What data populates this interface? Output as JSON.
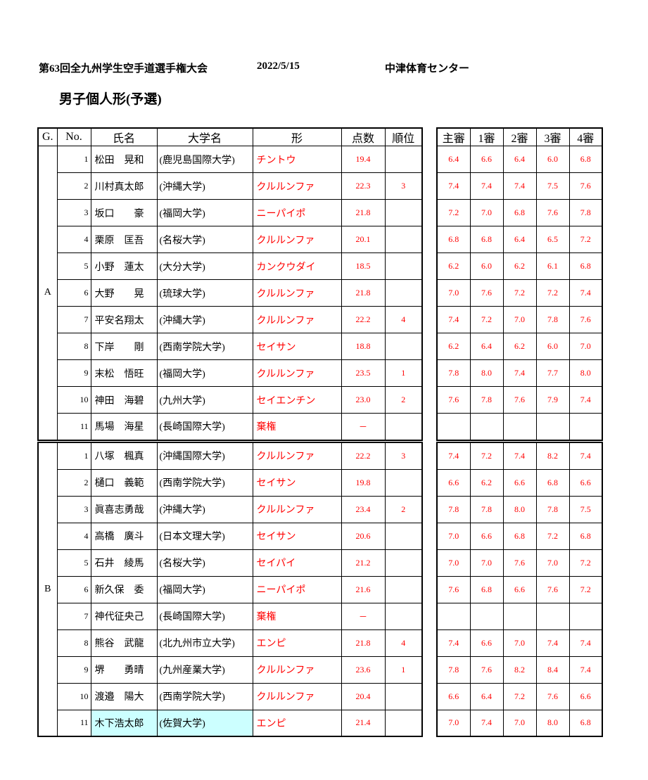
{
  "page": {
    "title": "第63回全九州学生空手道選手権大会",
    "date": "2022/5/15",
    "venue": "中津体育センター",
    "subtitle": "男子個人形(予選)"
  },
  "colors": {
    "score_red": "#ff0000",
    "highlight_cyan": "#ccffff",
    "border_black": "#000000"
  },
  "table": {
    "headers": {
      "group": "G.",
      "no": "No.",
      "name": "氏名",
      "university": "大学名",
      "kata": "形",
      "score": "点数",
      "rank": "順位"
    },
    "judge_headers": [
      "主審",
      "1審",
      "2審",
      "3審",
      "4審"
    ]
  },
  "groups": [
    {
      "label": "A",
      "rows": [
        {
          "no": "1",
          "name": "松田　晃和",
          "university": "(鹿児島国際大学)",
          "kata": "チントウ",
          "score": "19.4",
          "rank": "",
          "judges": [
            "6.4",
            "6.6",
            "6.4",
            "6.0",
            "6.8"
          ],
          "highlight": false
        },
        {
          "no": "2",
          "name": "川村真太郎",
          "university": "(沖縄大学)",
          "kata": "クルルンファ",
          "score": "22.3",
          "rank": "3",
          "judges": [
            "7.4",
            "7.4",
            "7.4",
            "7.5",
            "7.6"
          ],
          "highlight": false
        },
        {
          "no": "3",
          "name": "坂口　　豪",
          "university": "(福岡大学)",
          "kata": "ニーパイポ",
          "score": "21.8",
          "rank": "",
          "judges": [
            "7.2",
            "7.0",
            "6.8",
            "7.6",
            "7.8"
          ],
          "highlight": false
        },
        {
          "no": "4",
          "name": "栗原　匡吾",
          "university": "(名桜大学)",
          "kata": "クルルンファ",
          "score": "20.1",
          "rank": "",
          "judges": [
            "6.8",
            "6.8",
            "6.4",
            "6.5",
            "7.2"
          ],
          "highlight": false
        },
        {
          "no": "5",
          "name": "小野　蓮太",
          "university": "(大分大学)",
          "kata": "カンクウダイ",
          "score": "18.5",
          "rank": "",
          "judges": [
            "6.2",
            "6.0",
            "6.2",
            "6.1",
            "6.8"
          ],
          "highlight": false
        },
        {
          "no": "6",
          "name": "大野　　晃",
          "university": "(琉球大学)",
          "kata": "クルルンファ",
          "score": "21.8",
          "rank": "",
          "judges": [
            "7.0",
            "7.6",
            "7.2",
            "7.2",
            "7.4"
          ],
          "highlight": false
        },
        {
          "no": "7",
          "name": "平安名翔太",
          "university": "(沖縄大学)",
          "kata": "クルルンファ",
          "score": "22.2",
          "rank": "4",
          "judges": [
            "7.4",
            "7.2",
            "7.0",
            "7.8",
            "7.6"
          ],
          "highlight": false
        },
        {
          "no": "8",
          "name": "下岸　　剛",
          "university": "(西南学院大学)",
          "kata": "セイサン",
          "score": "18.8",
          "rank": "",
          "judges": [
            "6.2",
            "6.4",
            "6.2",
            "6.0",
            "7.0"
          ],
          "highlight": false
        },
        {
          "no": "9",
          "name": "末松　悟旺",
          "university": "(福岡大学)",
          "kata": "クルルンファ",
          "score": "23.5",
          "rank": "1",
          "judges": [
            "7.8",
            "8.0",
            "7.4",
            "7.7",
            "8.0"
          ],
          "highlight": false
        },
        {
          "no": "10",
          "name": "神田　海碧",
          "university": "(九州大学)",
          "kata": "セイエンチン",
          "score": "23.0",
          "rank": "2",
          "judges": [
            "7.6",
            "7.8",
            "7.6",
            "7.9",
            "7.4"
          ],
          "highlight": false
        },
        {
          "no": "11",
          "name": "馬場　海星",
          "university": "(長崎国際大学)",
          "kata": "棄権",
          "score": "－",
          "rank": "",
          "judges": [
            "",
            "",
            "",
            "",
            ""
          ],
          "highlight": false
        }
      ]
    },
    {
      "label": "B",
      "rows": [
        {
          "no": "1",
          "name": "八塚　楓真",
          "university": "(沖縄国際大学)",
          "kata": "クルルンファ",
          "score": "22.2",
          "rank": "3",
          "judges": [
            "7.4",
            "7.2",
            "7.4",
            "8.2",
            "7.4"
          ],
          "highlight": false
        },
        {
          "no": "2",
          "name": "樋口　義範",
          "university": "(西南学院大学)",
          "kata": "セイサン",
          "score": "19.8",
          "rank": "",
          "judges": [
            "6.6",
            "6.2",
            "6.6",
            "6.8",
            "6.6"
          ],
          "highlight": false
        },
        {
          "no": "3",
          "name": "眞喜志勇哉",
          "university": "(沖縄大学)",
          "kata": "クルルンファ",
          "score": "23.4",
          "rank": "2",
          "judges": [
            "7.8",
            "7.8",
            "8.0",
            "7.8",
            "7.5"
          ],
          "highlight": false
        },
        {
          "no": "4",
          "name": "高橋　廣斗",
          "university": "(日本文理大学)",
          "kata": "セイサン",
          "score": "20.6",
          "rank": "",
          "judges": [
            "7.0",
            "6.6",
            "6.8",
            "7.2",
            "6.8"
          ],
          "highlight": false
        },
        {
          "no": "5",
          "name": "石井　綾馬",
          "university": "(名桜大学)",
          "kata": "セイパイ",
          "score": "21.2",
          "rank": "",
          "judges": [
            "7.0",
            "7.0",
            "7.6",
            "7.0",
            "7.2"
          ],
          "highlight": false
        },
        {
          "no": "6",
          "name": "新久保　委",
          "university": "(福岡大学)",
          "kata": "ニーパイポ",
          "score": "21.6",
          "rank": "",
          "judges": [
            "7.6",
            "6.8",
            "6.6",
            "7.6",
            "7.2"
          ],
          "highlight": false
        },
        {
          "no": "7",
          "name": "神代征央己",
          "university": "(長崎国際大学)",
          "kata": "棄権",
          "score": "－",
          "rank": "",
          "judges": [
            "",
            "",
            "",
            "",
            ""
          ],
          "highlight": false
        },
        {
          "no": "8",
          "name": "熊谷　武龍",
          "university": "(北九州市立大学)",
          "kata": "エンピ",
          "score": "21.8",
          "rank": "4",
          "judges": [
            "7.4",
            "6.6",
            "7.0",
            "7.4",
            "7.4"
          ],
          "highlight": false
        },
        {
          "no": "9",
          "name": "堺　　勇晴",
          "university": "(九州産業大学)",
          "kata": "クルルンファ",
          "score": "23.6",
          "rank": "1",
          "judges": [
            "7.8",
            "7.6",
            "8.2",
            "8.4",
            "7.4"
          ],
          "highlight": false
        },
        {
          "no": "10",
          "name": "渡邉　陽大",
          "university": "(西南学院大学)",
          "kata": "クルルンファ",
          "score": "20.4",
          "rank": "",
          "judges": [
            "6.6",
            "6.4",
            "7.2",
            "7.6",
            "6.6"
          ],
          "highlight": false
        },
        {
          "no": "11",
          "name": "木下浩太郎",
          "university": "(佐賀大学)",
          "kata": "エンピ",
          "score": "21.4",
          "rank": "",
          "judges": [
            "7.0",
            "7.4",
            "7.0",
            "8.0",
            "6.8"
          ],
          "highlight": true
        }
      ]
    }
  ]
}
